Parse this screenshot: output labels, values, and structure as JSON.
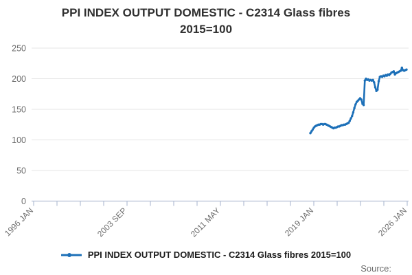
{
  "page": {
    "source_label": "Source:"
  },
  "chart_data": {
    "type": "line",
    "title": "PPI INDEX OUTPUT DOMESTIC - C2314 Glass fibres 2015=100",
    "title_lines": [
      "PPI INDEX OUTPUT DOMESTIC - C2314 Glass fibres",
      "2015=100"
    ],
    "xlabel": "",
    "ylabel": "",
    "ylim": [
      0,
      250
    ],
    "yticks": [
      0,
      50,
      100,
      150,
      200,
      250
    ],
    "xtick_labels": [
      "1996 JAN",
      "2003 SEP",
      "2011 MAY",
      "2019 JAN",
      "2026 JAN"
    ],
    "x_range": [
      "1996 JAN",
      "2026 JAN"
    ],
    "grid": "horizontal",
    "legend_position": "bottom",
    "colors": {
      "line": "#1d70b8",
      "grid": "#e4e4e4",
      "axis": "#b3bfd4",
      "tick_text": "#6d6d6d",
      "title_text": "#303030"
    },
    "series": [
      {
        "name": "PPI INDEX OUTPUT DOMESTIC - C2314 Glass fibres 2015=100",
        "start": "2019 JAN",
        "frequency": "monthly",
        "values": [
          111,
          114,
          117,
          120,
          122,
          123,
          124,
          125,
          125,
          126,
          126,
          125,
          126,
          126,
          125,
          124,
          123,
          122,
          121,
          120,
          119,
          120,
          120,
          121,
          122,
          122,
          123,
          124,
          124,
          125,
          125,
          126,
          127,
          128,
          131,
          135,
          139,
          145,
          152,
          158,
          162,
          164,
          166,
          168,
          166,
          159,
          157,
          197,
          200,
          198,
          199,
          197,
          198,
          197,
          198,
          194,
          186,
          180,
          182,
          196,
          203,
          204,
          203,
          205,
          204,
          206,
          205,
          207,
          206,
          208,
          210,
          211,
          212,
          207,
          209,
          210,
          211,
          212,
          213,
          218,
          214,
          213,
          214,
          215
        ]
      }
    ]
  }
}
